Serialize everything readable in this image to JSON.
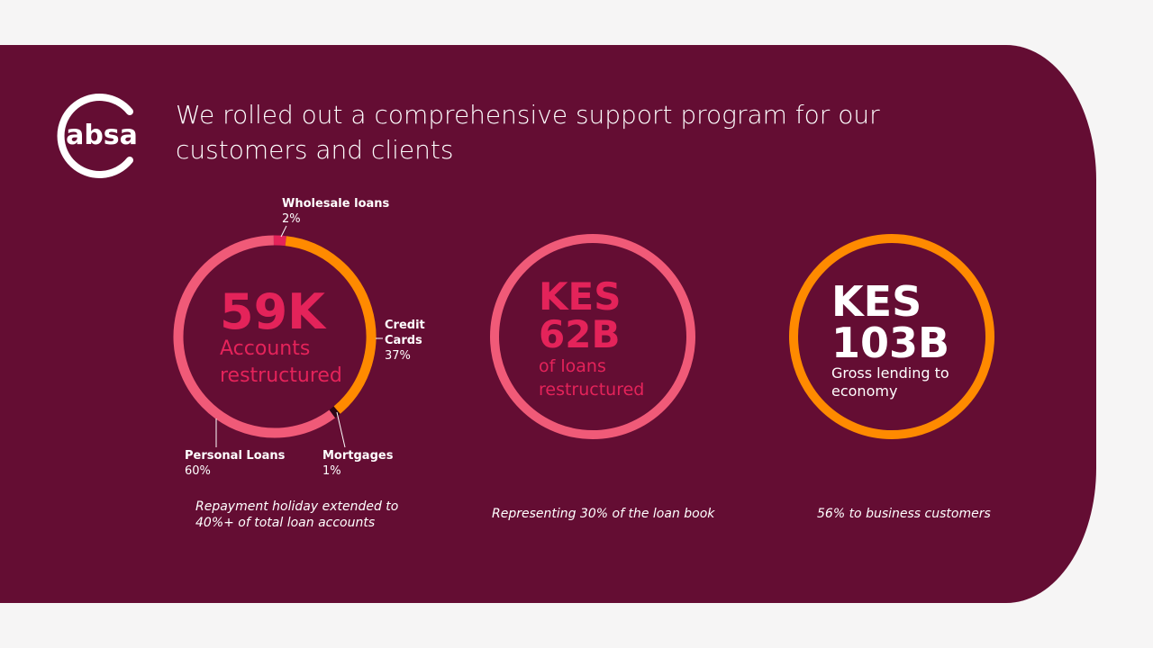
{
  "headline": "We rolled out a comprehensive support program for our customers and clients",
  "logo_text": "absa",
  "colors": {
    "panel": "#640d33",
    "pink": "#f05a78",
    "red": "#e4235a",
    "orange": "#ff8a00",
    "white": "#ffffff"
  },
  "chart_data": {
    "type": "pie",
    "categories": [
      "Wholesale loans",
      "Credit Cards",
      "Mortgages",
      "Personal Loans"
    ],
    "values": [
      2,
      37,
      1,
      60
    ],
    "title": "",
    "legend": "inline-labels"
  },
  "stat1": {
    "value": "59K",
    "line1": "Accounts",
    "line2": "restructured",
    "caption1": "Repayment holiday extended to",
    "caption2": "40%+ of total loan accounts"
  },
  "labels": {
    "wholesale": {
      "name": "Wholesale loans",
      "pct": "2%"
    },
    "credit1": "Credit",
    "credit2": "Cards",
    "credit_pct": "37%",
    "mortgages": {
      "name": "Mortgages",
      "pct": "1%"
    },
    "personal": {
      "name": "Personal Loans",
      "pct": "60%"
    }
  },
  "stat2": {
    "line1": "KES",
    "line2": "62B",
    "sub1": "of loans",
    "sub2": "restructured",
    "caption": "Representing 30% of the loan book"
  },
  "stat3": {
    "line1": "KES",
    "line2": "103B",
    "sub1": "Gross lending to",
    "sub2": "economy",
    "caption": "56% to business customers"
  }
}
